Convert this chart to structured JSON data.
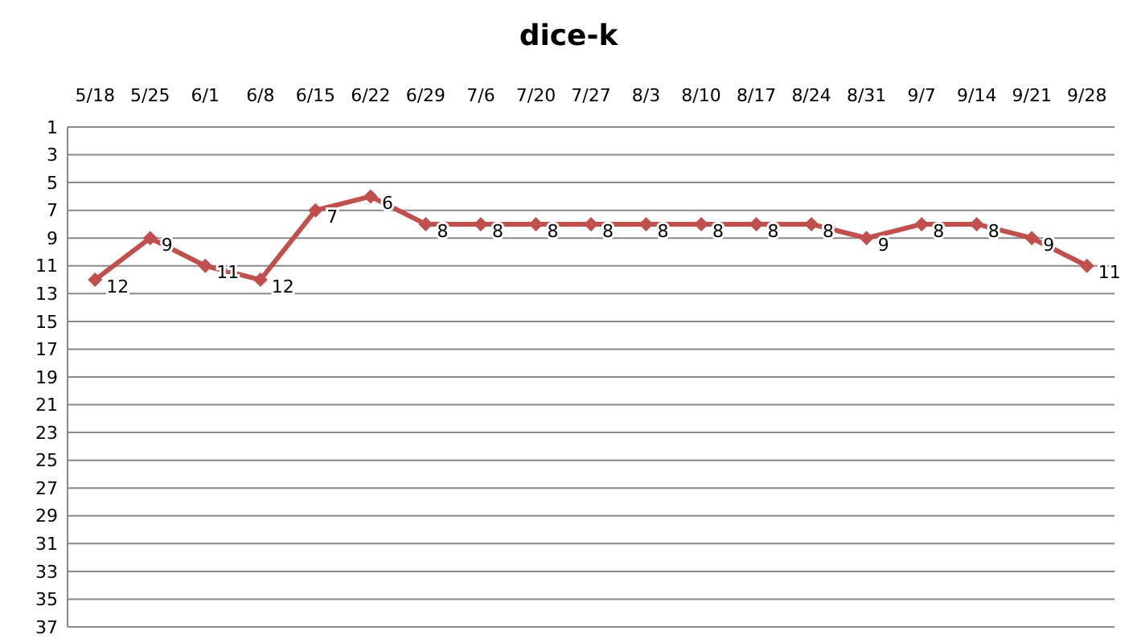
{
  "chart_data": {
    "type": "line",
    "title": "dice-k",
    "categories": [
      "5/18",
      "5/25",
      "6/1",
      "6/8",
      "6/15",
      "6/22",
      "6/29",
      "7/6",
      "7/20",
      "7/27",
      "8/3",
      "8/10",
      "8/17",
      "8/24",
      "8/31",
      "9/7",
      "9/14",
      "9/21",
      "9/28"
    ],
    "series": [
      {
        "color": "#c0504d",
        "values": [
          12,
          9,
          11,
          12,
          7,
          6,
          8,
          8,
          8,
          8,
          8,
          8,
          8,
          8,
          9,
          8,
          8,
          9,
          11
        ]
      }
    ],
    "ylim": [
      37,
      1
    ],
    "yticks": [
      1,
      3,
      5,
      7,
      9,
      11,
      13,
      15,
      17,
      19,
      21,
      23,
      25,
      27,
      29,
      31,
      33,
      35,
      37
    ],
    "grid": "y",
    "marker": "diamond",
    "line_style": "solid",
    "data_labels": true
  }
}
